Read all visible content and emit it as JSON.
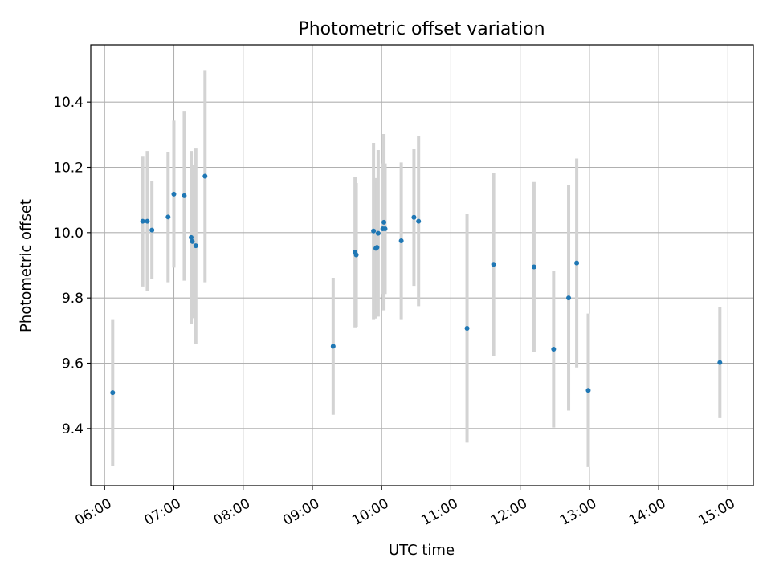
{
  "chart_data": {
    "type": "scatter",
    "title": "Photometric offset variation",
    "xlabel": "UTC time",
    "ylabel": "Photometric offset",
    "x_unit": "hours UTC",
    "xlim": [
      "05:48",
      "15:22"
    ],
    "ylim": [
      9.225,
      10.575
    ],
    "x_ticks": [
      "06:00",
      "07:00",
      "08:00",
      "09:00",
      "10:00",
      "11:00",
      "12:00",
      "13:00",
      "14:00",
      "15:00"
    ],
    "y_ticks": [
      "9.4",
      "9.6",
      "9.8",
      "10.0",
      "10.2",
      "10.4"
    ],
    "grid": true,
    "point_color": "#1f77b4",
    "errorbar_color": "#d3d3d3",
    "points": [
      {
        "x": "06:07",
        "y": 9.51,
        "err": 0.225
      },
      {
        "x": "06:33",
        "y": 10.035,
        "err": 0.2
      },
      {
        "x": "06:37",
        "y": 10.035,
        "err": 0.215
      },
      {
        "x": "06:41",
        "y": 10.008,
        "err": 0.15
      },
      {
        "x": "06:55",
        "y": 10.048,
        "err": 0.2
      },
      {
        "x": "07:00",
        "y": 10.118,
        "err": 0.225
      },
      {
        "x": "07:09",
        "y": 10.113,
        "err": 0.26
      },
      {
        "x": "07:15",
        "y": 9.985,
        "err": 0.265
      },
      {
        "x": "07:16",
        "y": 9.973,
        "err": 0.235
      },
      {
        "x": "07:19",
        "y": 9.96,
        "err": 0.3
      },
      {
        "x": "07:27",
        "y": 10.173,
        "err": 0.325
      },
      {
        "x": "09:18",
        "y": 9.652,
        "err": 0.21
      },
      {
        "x": "09:37",
        "y": 9.94,
        "err": 0.23
      },
      {
        "x": "09:38",
        "y": 9.932,
        "err": 0.22
      },
      {
        "x": "09:53",
        "y": 10.005,
        "err": 0.27
      },
      {
        "x": "09:55",
        "y": 9.952,
        "err": 0.215
      },
      {
        "x": "09:56",
        "y": 9.955,
        "err": 0.2
      },
      {
        "x": "09:57",
        "y": 9.998,
        "err": 0.255
      },
      {
        "x": "10:01",
        "y": 10.012,
        "err": 0.2
      },
      {
        "x": "10:02",
        "y": 10.032,
        "err": 0.27
      },
      {
        "x": "10:03",
        "y": 10.012,
        "err": 0.2
      },
      {
        "x": "10:17",
        "y": 9.975,
        "err": 0.24
      },
      {
        "x": "10:28",
        "y": 10.047,
        "err": 0.21
      },
      {
        "x": "10:32",
        "y": 10.035,
        "err": 0.26
      },
      {
        "x": "11:14",
        "y": 9.707,
        "err": 0.35
      },
      {
        "x": "11:37",
        "y": 9.903,
        "err": 0.28
      },
      {
        "x": "12:12",
        "y": 9.895,
        "err": 0.26
      },
      {
        "x": "12:29",
        "y": 9.643,
        "err": 0.24
      },
      {
        "x": "12:42",
        "y": 9.8,
        "err": 0.345
      },
      {
        "x": "12:49",
        "y": 9.907,
        "err": 0.32
      },
      {
        "x": "12:59",
        "y": 9.517,
        "err": 0.235
      },
      {
        "x": "14:53",
        "y": 9.602,
        "err": 0.17
      }
    ]
  }
}
